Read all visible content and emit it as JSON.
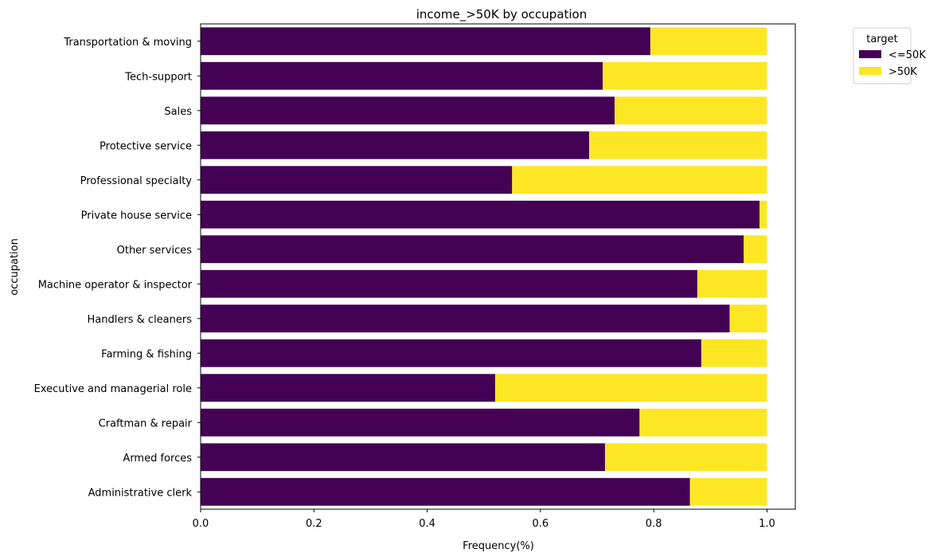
{
  "chart_data": {
    "type": "bar",
    "orientation": "horizontal",
    "stacked": true,
    "title": "income_>50K by occupation",
    "xlabel": "Frequency(%)",
    "ylabel": "occupation",
    "xlim": [
      0,
      1.05
    ],
    "xticks": [
      "0.0",
      "0.2",
      "0.4",
      "0.6",
      "0.8",
      "1.0"
    ],
    "categories": [
      "Administrative clerk",
      "Armed forces",
      "Craftman & repair",
      "Executive and managerial role",
      "Farming & fishing",
      "Handlers & cleaners",
      "Machine operator & inspector",
      "Other services",
      "Private house service",
      "Professional specialty",
      "Protective service",
      "Sales",
      "Tech-support",
      "Transportation & moving"
    ],
    "series": [
      {
        "name": "<=50K",
        "color": "#440154",
        "values": [
          0.864,
          0.714,
          0.775,
          0.52,
          0.884,
          0.934,
          0.877,
          0.959,
          0.987,
          0.55,
          0.686,
          0.731,
          0.71,
          0.794
        ]
      },
      {
        "name": ">50K",
        "color": "#fde725",
        "values": [
          0.136,
          0.286,
          0.225,
          0.48,
          0.116,
          0.066,
          0.123,
          0.041,
          0.013,
          0.45,
          0.314,
          0.269,
          0.29,
          0.206
        ]
      }
    ],
    "legend": {
      "title": "target",
      "position": "upper-right-outside"
    },
    "grid": false
  }
}
